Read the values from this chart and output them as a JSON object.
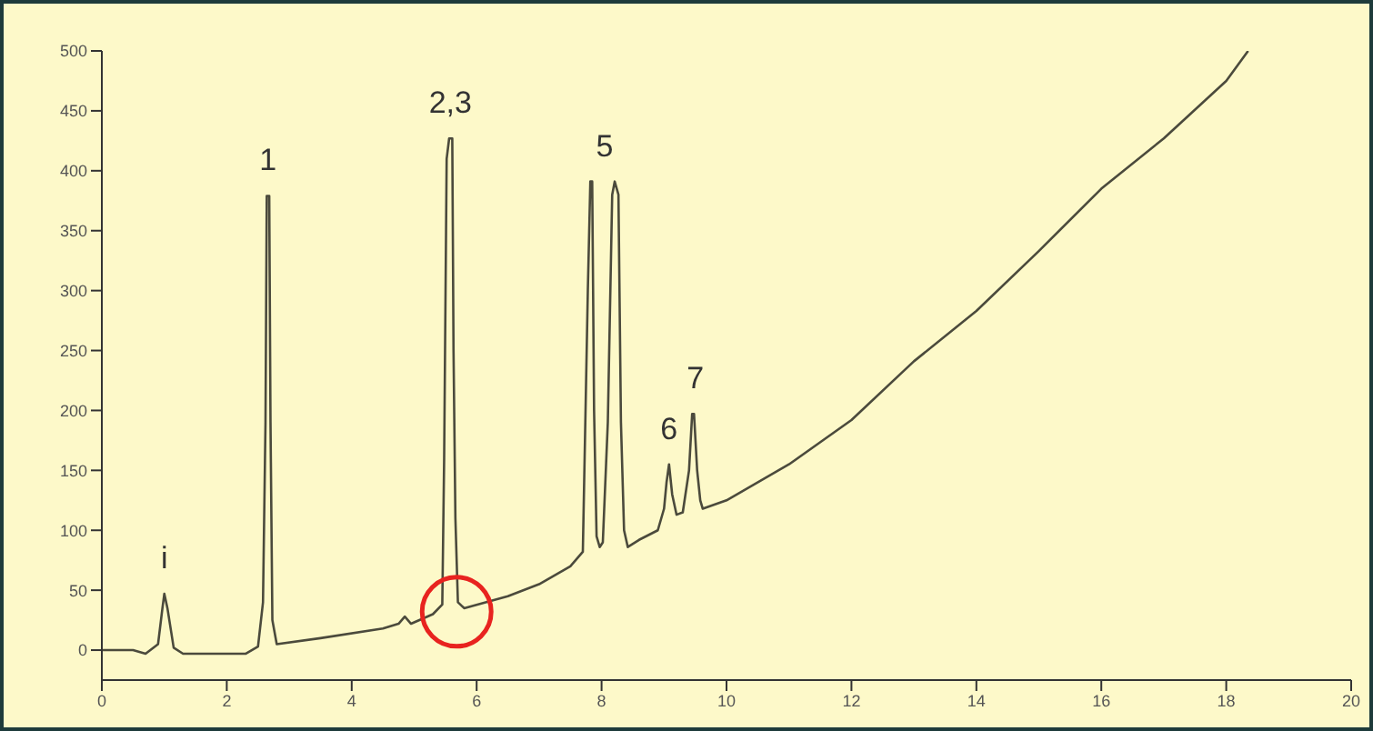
{
  "chart_data": {
    "type": "line",
    "x": [
      0,
      0.5,
      0.7,
      0.9,
      0.97,
      1.0,
      1.05,
      1.15,
      1.3,
      2.3,
      2.5,
      2.58,
      2.62,
      2.64,
      2.68,
      2.7,
      2.73,
      2.8,
      3.5,
      4.5,
      4.75,
      4.85,
      4.95,
      5.3,
      5.45,
      5.48,
      5.52,
      5.56,
      5.61,
      5.63,
      5.66,
      5.7,
      5.8,
      6.5,
      7.0,
      7.5,
      7.7,
      7.78,
      7.82,
      7.85,
      7.88,
      7.92,
      7.97,
      8.02,
      8.1,
      8.17,
      8.21,
      8.27,
      8.31,
      8.36,
      8.42,
      8.6,
      8.9,
      9.0,
      9.04,
      9.08,
      9.13,
      9.2,
      9.3,
      9.4,
      9.45,
      9.48,
      9.53,
      9.58,
      9.62,
      10,
      11,
      12,
      13,
      14,
      15,
      16,
      17,
      18,
      18.35
    ],
    "series": [
      {
        "color": "#4b4a3c",
        "values": [
          0,
          0,
          -3,
          5,
          35,
          47,
          35,
          2,
          -3,
          -3,
          3,
          40,
          190,
          379,
          379,
          190,
          25,
          5,
          10,
          18,
          22,
          28,
          22,
          30,
          38,
          160,
          410,
          427,
          427,
          250,
          110,
          40,
          35,
          45,
          55,
          70,
          82,
          300,
          391,
          391,
          200,
          95,
          86,
          90,
          190,
          380,
          391,
          380,
          190,
          100,
          86,
          92,
          100,
          118,
          140,
          155,
          130,
          113,
          115,
          150,
          197,
          197,
          150,
          125,
          118,
          125,
          155,
          192,
          241,
          283,
          333,
          385,
          427,
          475,
          500
        ]
      }
    ],
    "xlim": [
      0,
      20
    ],
    "xticks": [
      0,
      2,
      4,
      6,
      8,
      10,
      12,
      14,
      16,
      18,
      20
    ],
    "ylim": [
      -25,
      500
    ],
    "yticks": [
      0,
      50,
      100,
      150,
      200,
      250,
      300,
      350,
      400,
      450,
      500
    ],
    "grid": false,
    "marker": "none",
    "line_style": "solid",
    "annotations": [
      {
        "text": "i",
        "x": 1.0,
        "y": 47
      },
      {
        "text": "1",
        "x": 2.66,
        "y": 379
      },
      {
        "text": "2,3",
        "x": 5.58,
        "y": 427
      },
      {
        "text": "5",
        "x": 8.05,
        "y": 391
      },
      {
        "text": "6",
        "x": 9.08,
        "y": 155
      },
      {
        "text": "7",
        "x": 9.5,
        "y": 197
      }
    ]
  }
}
